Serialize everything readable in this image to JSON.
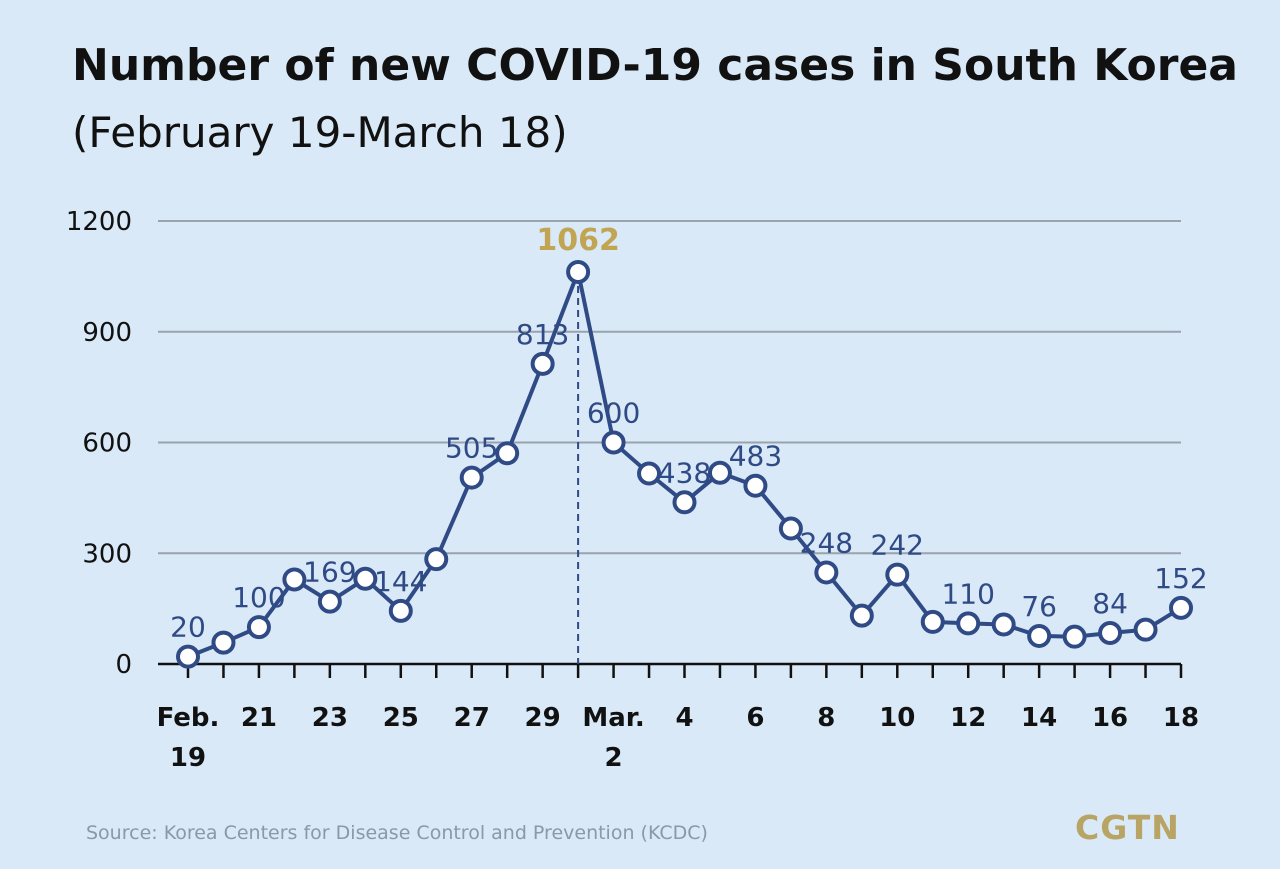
{
  "header": {
    "title": "Number of new COVID-19 cases in South Korea",
    "subtitle": "(February 19-March 18)"
  },
  "footer": {
    "source": "Source: Korea Centers for Disease Control and Prevention (KCDC)",
    "logo": "CGTN"
  },
  "colors": {
    "background": "#d9e9f7",
    "line": "#2f4a85",
    "marker_fill": "#ffffff",
    "label": "#2f4a85",
    "peak_label": "#c1a552",
    "grid": "#9aa3ad",
    "axis_text": "#111111"
  },
  "chart_data": {
    "type": "line",
    "title": "Number of new COVID-19 cases in South Korea",
    "subtitle": "(February 19-March 18)",
    "xlabel": "",
    "ylabel": "",
    "ylim": [
      0,
      1200
    ],
    "yticks": [
      "0",
      "300",
      "600",
      "900",
      "1200"
    ],
    "grid": true,
    "x": [
      "Feb. 19",
      "Feb. 20",
      "Feb. 21",
      "Feb. 22",
      "Feb. 23",
      "Feb. 24",
      "Feb. 25",
      "Feb. 26",
      "Feb. 27",
      "Feb. 28",
      "Feb. 29",
      "Mar. 1",
      "Mar. 2",
      "Mar. 3",
      "Mar. 4",
      "Mar. 5",
      "Mar. 6",
      "Mar. 7",
      "Mar. 8",
      "Mar. 9",
      "Mar. 10",
      "Mar. 11",
      "Mar. 12",
      "Mar. 13",
      "Mar. 14",
      "Mar. 15",
      "Mar. 16",
      "Mar. 17",
      "Mar. 18"
    ],
    "xtick_labels": [
      {
        "index": 0,
        "lines": [
          "Feb.",
          "19"
        ]
      },
      {
        "index": 2,
        "lines": [
          "21"
        ]
      },
      {
        "index": 4,
        "lines": [
          "23"
        ]
      },
      {
        "index": 6,
        "lines": [
          "25"
        ]
      },
      {
        "index": 8,
        "lines": [
          "27"
        ]
      },
      {
        "index": 10,
        "lines": [
          "29"
        ]
      },
      {
        "index": 12,
        "lines": [
          "Mar.",
          "2"
        ]
      },
      {
        "index": 14,
        "lines": [
          "4"
        ]
      },
      {
        "index": 16,
        "lines": [
          "6"
        ]
      },
      {
        "index": 18,
        "lines": [
          "8"
        ]
      },
      {
        "index": 20,
        "lines": [
          "10"
        ]
      },
      {
        "index": 22,
        "lines": [
          "12"
        ]
      },
      {
        "index": 24,
        "lines": [
          "14"
        ]
      },
      {
        "index": 26,
        "lines": [
          "16"
        ]
      },
      {
        "index": 28,
        "lines": [
          "18"
        ]
      }
    ],
    "series": [
      {
        "values": [
          20,
          58,
          100,
          229,
          169,
          231,
          144,
          284,
          505,
          571,
          813,
          1062,
          600,
          516,
          438,
          518,
          483,
          367,
          248,
          131,
          242,
          114,
          110,
          107,
          76,
          74,
          84,
          93,
          152
        ]
      }
    ],
    "data_labels": [
      {
        "index": 0,
        "text": "20"
      },
      {
        "index": 2,
        "text": "100"
      },
      {
        "index": 4,
        "text": "169"
      },
      {
        "index": 6,
        "text": "144"
      },
      {
        "index": 8,
        "text": "505"
      },
      {
        "index": 10,
        "text": "813"
      },
      {
        "index": 11,
        "text": "1062",
        "highlight": true
      },
      {
        "index": 12,
        "text": "600"
      },
      {
        "index": 14,
        "text": "438"
      },
      {
        "index": 16,
        "text": "483"
      },
      {
        "index": 18,
        "text": "248"
      },
      {
        "index": 20,
        "text": "242"
      },
      {
        "index": 22,
        "text": "110"
      },
      {
        "index": 24,
        "text": "76"
      },
      {
        "index": 26,
        "text": "84"
      },
      {
        "index": 28,
        "text": "152"
      }
    ],
    "peak_marker_index": 11
  }
}
